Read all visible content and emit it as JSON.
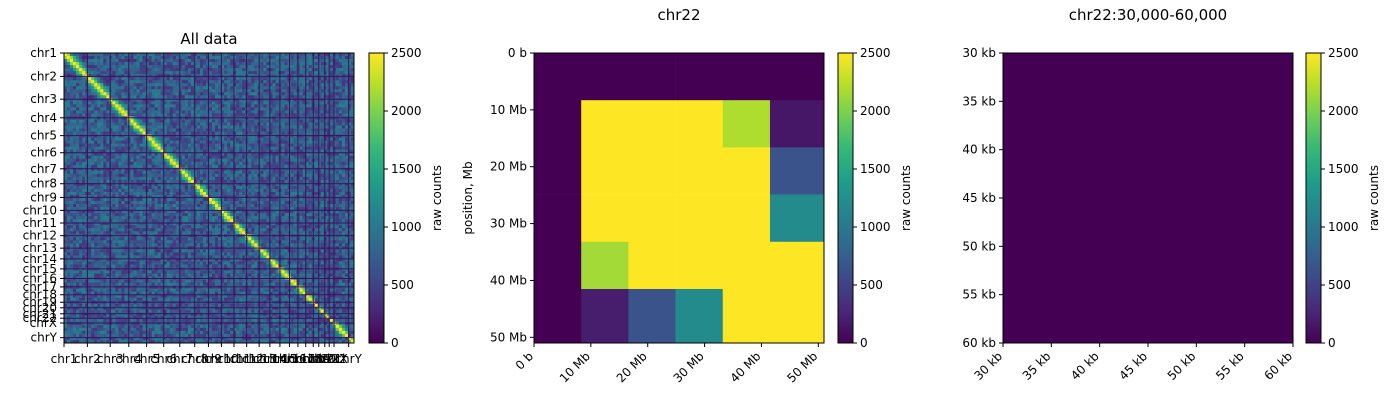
{
  "colorscale": {
    "name": "viridis",
    "stops": [
      "#440154",
      "#482878",
      "#3e4989",
      "#31688e",
      "#26828e",
      "#1f9e89",
      "#35b779",
      "#6ece58",
      "#b5de2b",
      "#fde725"
    ]
  },
  "chart_data": [
    {
      "type": "heatmap",
      "title": "All data",
      "chromosomes": [
        "chr1",
        "chr2",
        "chr3",
        "chr4",
        "chr5",
        "chr6",
        "chr7",
        "chr8",
        "chr9",
        "chr10",
        "chr11",
        "chr12",
        "chr13",
        "chr14",
        "chr15",
        "chr16",
        "chr17",
        "chr18",
        "chr19",
        "chr20",
        "chr21",
        "chr22",
        "chrX",
        "chrY"
      ],
      "chrom_sizes": [
        249,
        243,
        198,
        190,
        182,
        171,
        159,
        146,
        138,
        134,
        135,
        133,
        114,
        107,
        102,
        90,
        83,
        80,
        59,
        64,
        47,
        51,
        156,
        57
      ],
      "y_tick_labels": [
        "chr1",
        "chr2",
        "chr3",
        "chr4",
        "chr5",
        "chr6",
        "chr7",
        "chr8",
        "chr9",
        "chr10",
        "chr11",
        "chr12",
        "chr13",
        "chr14",
        "chr15",
        "chr16",
        "chr17",
        "chr18",
        "chr19",
        "chr20",
        "chr21",
        "chr22",
        "chrX",
        "chrY"
      ],
      "x_tick_labels": [
        "chr1",
        "chr2",
        "chr3",
        "chr4",
        "chr5",
        "chr6",
        "chr7",
        "chr8",
        "chr9",
        "chr10",
        "chr11",
        "chr12",
        "chr13",
        "chr14",
        "chr15",
        "chr16",
        "chr17",
        "chr18",
        "chr19",
        "chr20",
        "chr21",
        "chr22",
        "chrX",
        "chrY"
      ],
      "colorbar": {
        "label": "raw counts",
        "ticks": [
          "0",
          "500",
          "1000",
          "1500",
          "2000",
          "2500"
        ],
        "range": [
          0,
          2500
        ]
      }
    },
    {
      "type": "heatmap",
      "title": "chr22",
      "ylabel": "position, Mb",
      "x_tick_labels": [
        "0 b",
        "10 Mb",
        "20 Mb",
        "30 Mb",
        "40 Mb",
        "50 Mb"
      ],
      "y_tick_labels": [
        "0 b",
        "10 Mb",
        "20 Mb",
        "30 Mb",
        "40 Mb",
        "50 Mb"
      ],
      "matrix": [
        [
          0,
          0,
          0,
          0,
          0,
          0
        ],
        [
          0,
          2500,
          2500,
          2500,
          2200,
          150
        ],
        [
          0,
          2500,
          2500,
          2500,
          2500,
          650
        ],
        [
          0,
          2500,
          2500,
          2500,
          2500,
          1200
        ],
        [
          0,
          2150,
          2500,
          2500,
          2500,
          2500
        ],
        [
          0,
          200,
          650,
          1200,
          2500,
          2500
        ]
      ],
      "colorbar": {
        "label": "raw counts",
        "ticks": [
          "0",
          "500",
          "1000",
          "1500",
          "2000",
          "2500"
        ],
        "range": [
          0,
          2500
        ]
      }
    },
    {
      "type": "heatmap",
      "title": "chr22:30,000-60,000",
      "x_tick_labels": [
        "30 kb",
        "35 kb",
        "40 kb",
        "45 kb",
        "50 kb",
        "55 kb",
        "60 kb"
      ],
      "y_tick_labels": [
        "30 kb",
        "35 kb",
        "40 kb",
        "45 kb",
        "50 kb",
        "55 kb",
        "60 kb"
      ],
      "uniform_value": 0,
      "colorbar": {
        "label": "raw counts",
        "ticks": [
          "0",
          "500",
          "1000",
          "1500",
          "2000",
          "2500"
        ],
        "range": [
          0,
          2500
        ]
      }
    }
  ]
}
